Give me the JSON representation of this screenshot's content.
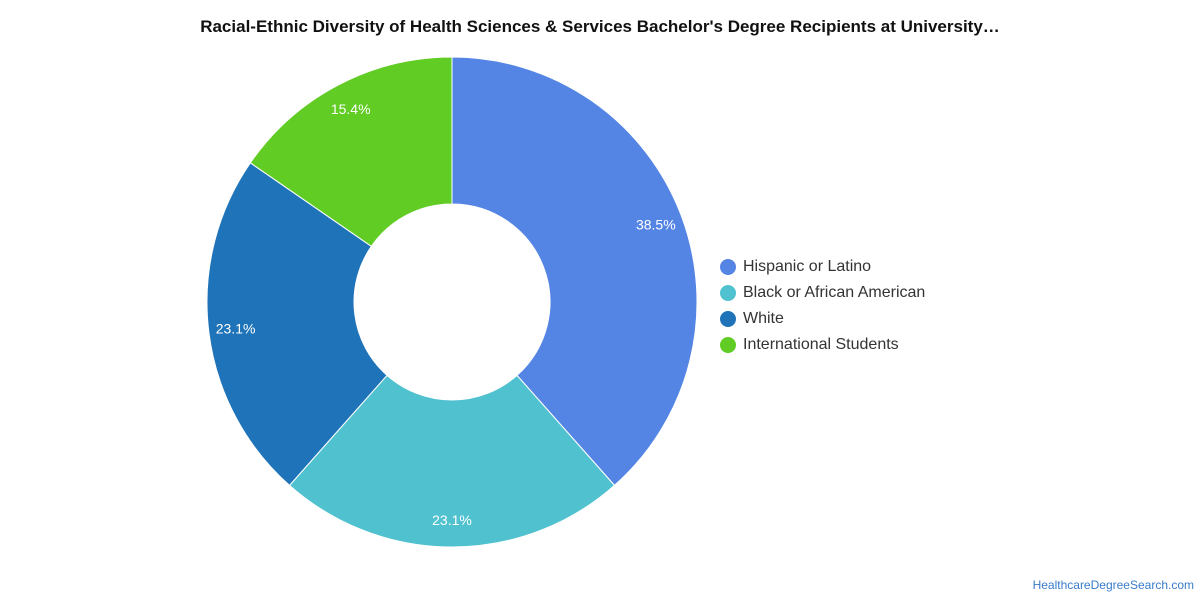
{
  "chart_data": {
    "type": "pie",
    "style": "donut",
    "title": "Racial-Ethnic Diversity of Health Sciences & Services Bachelor's Degree Recipients at University…",
    "categories": [
      "Hispanic or Latino",
      "Black or African American",
      "White",
      "International Students"
    ],
    "values": [
      38.5,
      23.1,
      23.1,
      15.4
    ],
    "data_labels": [
      "38.5%",
      "23.1%",
      "23.1%",
      "15.4%"
    ],
    "colors": [
      "#5585e4",
      "#4fc1cf",
      "#1f73b8",
      "#60cc24"
    ],
    "legend_position": "right",
    "start_angle": "top, clockwise"
  },
  "source": "HealthcareDegreeSearch.com"
}
